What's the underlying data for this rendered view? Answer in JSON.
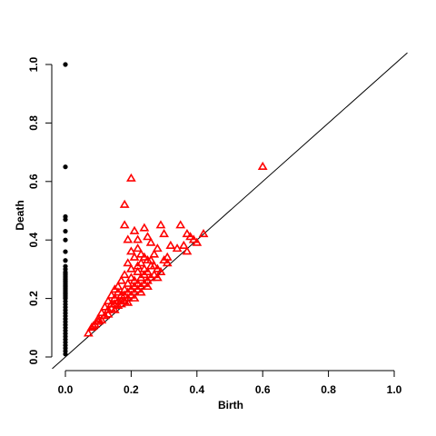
{
  "chart_data": {
    "type": "scatter",
    "title": "",
    "xlabel": "Birth",
    "ylabel": "Death",
    "xlim": [
      0,
      1
    ],
    "ylim": [
      0,
      1
    ],
    "x_ticks": [
      0.0,
      0.2,
      0.4,
      0.6,
      0.8,
      1.0
    ],
    "y_ticks": [
      0.0,
      0.2,
      0.4,
      0.6,
      0.8,
      1.0
    ],
    "x_tick_labels": [
      "0.0",
      "0.2",
      "0.4",
      "0.6",
      "0.8",
      "1.0"
    ],
    "y_tick_labels": [
      "0.0",
      "0.2",
      "0.4",
      "0.6",
      "0.8",
      "1.0"
    ],
    "diagonal": true,
    "grid": false,
    "legend": "none",
    "colors": {
      "dim0": "#000000",
      "dim1": "#ff0000"
    },
    "series": [
      {
        "marker": "filled-circle",
        "color": "#000000",
        "points": [
          [
            0,
            1.0
          ],
          [
            0,
            0.65
          ],
          [
            0,
            0.48
          ],
          [
            0,
            0.47
          ],
          [
            0,
            0.43
          ],
          [
            0,
            0.4
          ],
          [
            0,
            0.36
          ],
          [
            0,
            0.33
          ],
          [
            0,
            0.31
          ],
          [
            0,
            0.3
          ],
          [
            0,
            0.29
          ],
          [
            0,
            0.285
          ],
          [
            0,
            0.28
          ],
          [
            0,
            0.275
          ],
          [
            0,
            0.27
          ],
          [
            0,
            0.265
          ],
          [
            0,
            0.26
          ],
          [
            0,
            0.255
          ],
          [
            0,
            0.25
          ],
          [
            0,
            0.245
          ],
          [
            0,
            0.24
          ],
          [
            0,
            0.235
          ],
          [
            0,
            0.23
          ],
          [
            0,
            0.225
          ],
          [
            0,
            0.22
          ],
          [
            0,
            0.215
          ],
          [
            0,
            0.21
          ],
          [
            0,
            0.205
          ],
          [
            0,
            0.2
          ],
          [
            0,
            0.19
          ],
          [
            0,
            0.18
          ],
          [
            0,
            0.17
          ],
          [
            0,
            0.16
          ],
          [
            0,
            0.15
          ],
          [
            0,
            0.14
          ],
          [
            0,
            0.13
          ],
          [
            0,
            0.12
          ],
          [
            0,
            0.11
          ],
          [
            0,
            0.1
          ],
          [
            0,
            0.09
          ],
          [
            0,
            0.08
          ],
          [
            0,
            0.07
          ],
          [
            0,
            0.06
          ],
          [
            0,
            0.05
          ],
          [
            0,
            0.04
          ],
          [
            0,
            0.03
          ],
          [
            0,
            0.02
          ],
          [
            0,
            0.01
          ]
        ]
      },
      {
        "marker": "open-triangle",
        "color": "#ff0000",
        "points": [
          [
            0.6,
            0.65
          ],
          [
            0.2,
            0.61
          ],
          [
            0.18,
            0.52
          ],
          [
            0.18,
            0.45
          ],
          [
            0.21,
            0.43
          ],
          [
            0.24,
            0.44
          ],
          [
            0.29,
            0.45
          ],
          [
            0.25,
            0.41
          ],
          [
            0.26,
            0.39
          ],
          [
            0.22,
            0.4
          ],
          [
            0.19,
            0.4
          ],
          [
            0.3,
            0.42
          ],
          [
            0.35,
            0.45
          ],
          [
            0.37,
            0.42
          ],
          [
            0.38,
            0.41
          ],
          [
            0.39,
            0.4
          ],
          [
            0.42,
            0.42
          ],
          [
            0.36,
            0.38
          ],
          [
            0.37,
            0.36
          ],
          [
            0.4,
            0.39
          ],
          [
            0.34,
            0.37
          ],
          [
            0.2,
            0.36
          ],
          [
            0.23,
            0.35
          ],
          [
            0.28,
            0.37
          ],
          [
            0.32,
            0.38
          ],
          [
            0.21,
            0.34
          ],
          [
            0.25,
            0.33
          ],
          [
            0.27,
            0.35
          ],
          [
            0.3,
            0.33
          ],
          [
            0.31,
            0.34
          ],
          [
            0.19,
            0.32
          ],
          [
            0.22,
            0.31
          ],
          [
            0.24,
            0.3
          ],
          [
            0.26,
            0.31
          ],
          [
            0.28,
            0.3
          ],
          [
            0.29,
            0.29
          ],
          [
            0.31,
            0.32
          ],
          [
            0.2,
            0.3
          ],
          [
            0.22,
            0.29
          ],
          [
            0.24,
            0.28
          ],
          [
            0.27,
            0.28
          ],
          [
            0.28,
            0.27
          ],
          [
            0.18,
            0.28
          ],
          [
            0.2,
            0.27
          ],
          [
            0.21,
            0.26
          ],
          [
            0.23,
            0.27
          ],
          [
            0.25,
            0.26
          ],
          [
            0.26,
            0.27
          ],
          [
            0.17,
            0.26
          ],
          [
            0.19,
            0.25
          ],
          [
            0.21,
            0.24
          ],
          [
            0.22,
            0.25
          ],
          [
            0.23,
            0.24
          ],
          [
            0.24,
            0.25
          ],
          [
            0.25,
            0.24
          ],
          [
            0.16,
            0.24
          ],
          [
            0.18,
            0.23
          ],
          [
            0.19,
            0.22
          ],
          [
            0.2,
            0.23
          ],
          [
            0.21,
            0.22
          ],
          [
            0.22,
            0.23
          ],
          [
            0.23,
            0.22
          ],
          [
            0.15,
            0.23
          ],
          [
            0.16,
            0.22
          ],
          [
            0.17,
            0.21
          ],
          [
            0.18,
            0.21
          ],
          [
            0.19,
            0.2
          ],
          [
            0.2,
            0.21
          ],
          [
            0.21,
            0.2
          ],
          [
            0.14,
            0.21
          ],
          [
            0.15,
            0.2
          ],
          [
            0.16,
            0.19
          ],
          [
            0.17,
            0.19
          ],
          [
            0.18,
            0.19
          ],
          [
            0.19,
            0.185
          ],
          [
            0.13,
            0.19
          ],
          [
            0.14,
            0.18
          ],
          [
            0.15,
            0.18
          ],
          [
            0.16,
            0.175
          ],
          [
            0.17,
            0.18
          ],
          [
            0.12,
            0.17
          ],
          [
            0.13,
            0.16
          ],
          [
            0.14,
            0.165
          ],
          [
            0.15,
            0.16
          ],
          [
            0.11,
            0.15
          ],
          [
            0.12,
            0.14
          ],
          [
            0.13,
            0.145
          ],
          [
            0.1,
            0.13
          ],
          [
            0.11,
            0.125
          ],
          [
            0.09,
            0.11
          ],
          [
            0.1,
            0.12
          ],
          [
            0.08,
            0.1
          ],
          [
            0.085,
            0.105
          ],
          [
            0.07,
            0.08
          ],
          [
            0.22,
            0.37
          ],
          [
            0.24,
            0.34
          ],
          [
            0.26,
            0.33
          ],
          [
            0.23,
            0.32
          ],
          [
            0.27,
            0.31
          ],
          [
            0.25,
            0.29
          ]
        ]
      }
    ]
  }
}
